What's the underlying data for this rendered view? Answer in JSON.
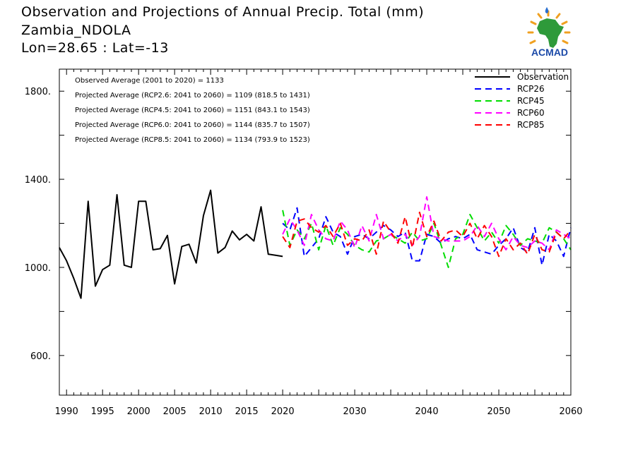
{
  "header": {
    "title_line1": "Observation and Projections of Annual Precip. Total (mm)",
    "title_line2": "Zambia_NDOLA",
    "title_line3": "Lon=28.65 : Lat=-13"
  },
  "logo": {
    "text": "ACMAD",
    "icon": "africa-map-logo"
  },
  "chart_data": {
    "type": "line",
    "xlim": [
      1989,
      2060
    ],
    "ylim": [
      420,
      1900
    ],
    "x_ticks": [
      1990,
      1995,
      2000,
      2005,
      2010,
      2015,
      2020,
      2030,
      2040,
      2050,
      2060
    ],
    "y_ticks": [
      600,
      1000,
      1400,
      1800
    ],
    "y_tick_labels": [
      "600.",
      "1000.",
      "1400.",
      "1800."
    ],
    "annotations": [
      "Observed Average (2001 to 2020) = 1133",
      "Projected Average (RCP2.6: 2041 to 2060) = 1109 (818.5 to 1431)",
      "Projected Average (RCP4.5: 2041 to 2060) = 1151 (843.1 to 1543)",
      "Projected Average (RCP6.0: 2041 to 2060) = 1144 (835.7 to 1507)",
      "Projected Average (RCP8.5: 2041 to 2060) = 1134 (793.9 to 1523)"
    ],
    "legend_position": "top-right",
    "series": [
      {
        "name": "Observation",
        "color": "#000000",
        "dashed": false,
        "x": [
          1989,
          1990,
          1991,
          1992,
          1993,
          1994,
          1995,
          1996,
          1997,
          1998,
          1999,
          2000,
          2001,
          2002,
          2003,
          2004,
          2005,
          2006,
          2007,
          2008,
          2009,
          2010,
          2011,
          2012,
          2013,
          2014,
          2015,
          2016,
          2017,
          2018,
          2019,
          2020
        ],
        "y": [
          1090,
          1030,
          950,
          860,
          1300,
          915,
          990,
          1010,
          1330,
          1010,
          1000,
          1300,
          1300,
          1080,
          1085,
          1145,
          925,
          1095,
          1105,
          1020,
          1235,
          1350,
          1065,
          1090,
          1165,
          1125,
          1150,
          1120,
          1275,
          1060,
          1055,
          1050
        ]
      },
      {
        "name": "RCP26",
        "color": "#0000ff",
        "dashed": true,
        "x": [
          2020,
          2021,
          2022,
          2023,
          2024,
          2025,
          2026,
          2027,
          2028,
          2029,
          2030,
          2031,
          2032,
          2033,
          2034,
          2035,
          2036,
          2037,
          2038,
          2039,
          2040,
          2041,
          2042,
          2043,
          2044,
          2045,
          2046,
          2047,
          2048,
          2049,
          2050,
          2051,
          2052,
          2053,
          2054,
          2055,
          2056,
          2057,
          2058,
          2059,
          2060
        ],
        "y": [
          1200,
          1170,
          1270,
          1050,
          1090,
          1130,
          1230,
          1160,
          1140,
          1060,
          1140,
          1150,
          1130,
          1160,
          1190,
          1170,
          1140,
          1160,
          1030,
          1030,
          1150,
          1140,
          1110,
          1130,
          1140,
          1130,
          1150,
          1080,
          1070,
          1060,
          1100,
          1130,
          1180,
          1090,
          1070,
          1180,
          1010,
          1150,
          1120,
          1050,
          1180
        ]
      },
      {
        "name": "RCP45",
        "color": "#00dd00",
        "dashed": true,
        "x": [
          2020,
          2021,
          2022,
          2023,
          2024,
          2025,
          2026,
          2027,
          2028,
          2029,
          2030,
          2031,
          2032,
          2033,
          2034,
          2035,
          2036,
          2037,
          2038,
          2039,
          2040,
          2041,
          2042,
          2043,
          2044,
          2045,
          2046,
          2047,
          2048,
          2049,
          2050,
          2051,
          2052,
          2053,
          2054,
          2055,
          2056,
          2057,
          2058,
          2059,
          2060
        ],
        "y": [
          1260,
          1100,
          1170,
          1130,
          1200,
          1080,
          1190,
          1100,
          1180,
          1150,
          1100,
          1080,
          1070,
          1120,
          1130,
          1150,
          1130,
          1110,
          1160,
          1120,
          1130,
          1200,
          1100,
          1000,
          1130,
          1150,
          1240,
          1180,
          1120,
          1160,
          1110,
          1190,
          1150,
          1100,
          1130,
          1120,
          1110,
          1180,
          1160,
          1130,
          1080
        ]
      },
      {
        "name": "RCP60",
        "color": "#ff00ff",
        "dashed": true,
        "x": [
          2020,
          2021,
          2022,
          2023,
          2024,
          2025,
          2026,
          2027,
          2028,
          2029,
          2030,
          2031,
          2032,
          2033,
          2034,
          2035,
          2036,
          2037,
          2038,
          2039,
          2040,
          2041,
          2042,
          2043,
          2044,
          2045,
          2046,
          2047,
          2048,
          2049,
          2050,
          2051,
          2052,
          2053,
          2054,
          2055,
          2056,
          2057,
          2058,
          2059,
          2060
        ],
        "y": [
          1150,
          1220,
          1170,
          1100,
          1240,
          1170,
          1130,
          1120,
          1210,
          1170,
          1090,
          1190,
          1120,
          1240,
          1130,
          1150,
          1120,
          1150,
          1100,
          1140,
          1320,
          1140,
          1130,
          1120,
          1120,
          1120,
          1140,
          1190,
          1140,
          1200,
          1130,
          1080,
          1140,
          1100,
          1090,
          1120,
          1110,
          1080,
          1170,
          1150,
          1130
        ]
      },
      {
        "name": "RCP85",
        "color": "#ff0000",
        "dashed": true,
        "x": [
          2020,
          2021,
          2022,
          2023,
          2024,
          2025,
          2026,
          2027,
          2028,
          2029,
          2030,
          2031,
          2032,
          2033,
          2034,
          2035,
          2036,
          2037,
          2038,
          2039,
          2040,
          2041,
          2042,
          2043,
          2044,
          2045,
          2046,
          2047,
          2048,
          2049,
          2050,
          2051,
          2052,
          2053,
          2054,
          2055,
          2056,
          2057,
          2058,
          2059,
          2060
        ],
        "y": [
          1140,
          1090,
          1210,
          1220,
          1180,
          1160,
          1190,
          1140,
          1200,
          1100,
          1130,
          1120,
          1170,
          1060,
          1210,
          1160,
          1110,
          1230,
          1090,
          1250,
          1140,
          1210,
          1120,
          1160,
          1170,
          1140,
          1200,
          1130,
          1190,
          1140,
          1050,
          1130,
          1080,
          1110,
          1060,
          1150,
          1080,
          1070,
          1160,
          1130,
          1170
        ]
      }
    ]
  }
}
